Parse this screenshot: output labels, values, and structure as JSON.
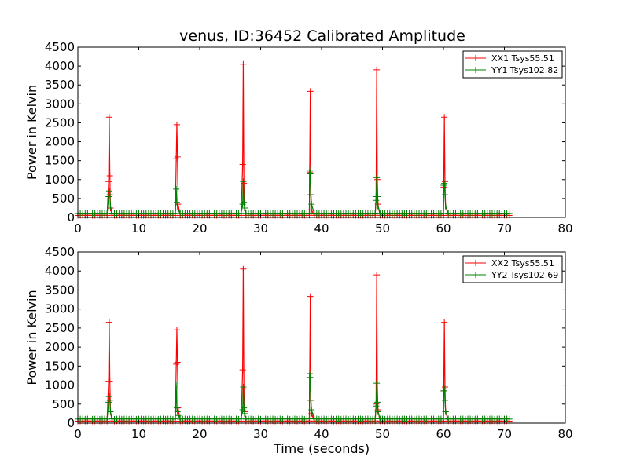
{
  "chart_data": [
    {
      "type": "line",
      "title": "venus, ID:36452 Calibrated Amplitude",
      "xlabel": "",
      "ylabel": "Power in Kelvin",
      "xlim": [
        0,
        80
      ],
      "ylim": [
        0,
        4500
      ],
      "xticks": [
        "0",
        "10",
        "20",
        "30",
        "40",
        "50",
        "60",
        "70",
        "80"
      ],
      "yticks": [
        "0",
        "500",
        "1000",
        "1500",
        "2000",
        "2500",
        "3000",
        "3500",
        "4000",
        "4500"
      ],
      "grid": false,
      "legend_position": "top-right",
      "series": [
        {
          "name": "XX1 Tsys55.51",
          "color": "#ff0000",
          "marker": "plus",
          "baseline": 55,
          "x_start": 0,
          "x_end": 71,
          "peaks": [
            {
              "x": 5.2,
              "values": [
                950,
                2650,
                1100,
                250
              ]
            },
            {
              "x": 16.3,
              "values": [
                1550,
                2450,
                1600,
                350
              ]
            },
            {
              "x": 27.2,
              "values": [
                1400,
                4050,
                900,
                300
              ]
            },
            {
              "x": 38.2,
              "values": [
                1200,
                3330,
                600,
                200
              ]
            },
            {
              "x": 49.1,
              "values": [
                550,
                3900,
                1000,
                350
              ]
            },
            {
              "x": 60.2,
              "values": [
                800,
                2650,
                950,
                300
              ]
            }
          ]
        },
        {
          "name": "YY1 Tsys102.82",
          "color": "#008000",
          "marker": "plus",
          "baseline": 110,
          "x_start": 0,
          "x_end": 71,
          "peaks": [
            {
              "x": 5.2,
              "values": [
                550,
                700,
                600,
                300
              ]
            },
            {
              "x": 16.3,
              "values": [
                750,
                400,
                300,
                200
              ]
            },
            {
              "x": 27.2,
              "values": [
                350,
                950,
                400,
                250
              ]
            },
            {
              "x": 38.2,
              "values": [
                1250,
                1150,
                600,
                350
              ]
            },
            {
              "x": 49.1,
              "values": [
                450,
                1050,
                550,
                300
              ]
            },
            {
              "x": 60.2,
              "values": [
                850,
                900,
                600,
                300
              ]
            }
          ]
        }
      ]
    },
    {
      "type": "line",
      "title": "",
      "xlabel": "Time (seconds)",
      "ylabel": "Power in Kelvin",
      "xlim": [
        0,
        80
      ],
      "ylim": [
        0,
        4500
      ],
      "xticks": [
        "0",
        "10",
        "20",
        "30",
        "40",
        "50",
        "60",
        "70",
        "80"
      ],
      "yticks": [
        "0",
        "500",
        "1000",
        "1500",
        "2000",
        "2500",
        "3000",
        "3500",
        "4000",
        "4500"
      ],
      "grid": false,
      "legend_position": "top-right",
      "series": [
        {
          "name": "XX2 Tsys55.51",
          "color": "#ff0000",
          "marker": "plus",
          "baseline": 55,
          "x_start": 0,
          "x_end": 71,
          "peaks": [
            {
              "x": 5.2,
              "values": [
                1100,
                2650,
                1100,
                300
              ]
            },
            {
              "x": 16.3,
              "values": [
                1550,
                2450,
                1600,
                400
              ]
            },
            {
              "x": 27.2,
              "values": [
                1400,
                4050,
                900,
                300
              ]
            },
            {
              "x": 38.2,
              "values": [
                1200,
                3330,
                600,
                250
              ]
            },
            {
              "x": 49.1,
              "values": [
                500,
                3900,
                1000,
                350
              ]
            },
            {
              "x": 60.2,
              "values": [
                850,
                2650,
                950,
                300
              ]
            }
          ]
        },
        {
          "name": "YY2 Tsys102.69",
          "color": "#008000",
          "marker": "plus",
          "baseline": 110,
          "x_start": 0,
          "x_end": 71,
          "peaks": [
            {
              "x": 5.2,
              "values": [
                550,
                700,
                600,
                300
              ]
            },
            {
              "x": 16.3,
              "values": [
                1000,
                400,
                300,
                200
              ]
            },
            {
              "x": 27.2,
              "values": [
                350,
                950,
                400,
                250
              ]
            },
            {
              "x": 38.2,
              "values": [
                1300,
                1200,
                600,
                350
              ]
            },
            {
              "x": 49.1,
              "values": [
                450,
                1050,
                550,
                300
              ]
            },
            {
              "x": 60.2,
              "values": [
                850,
                900,
                600,
                300
              ]
            }
          ]
        }
      ]
    }
  ]
}
